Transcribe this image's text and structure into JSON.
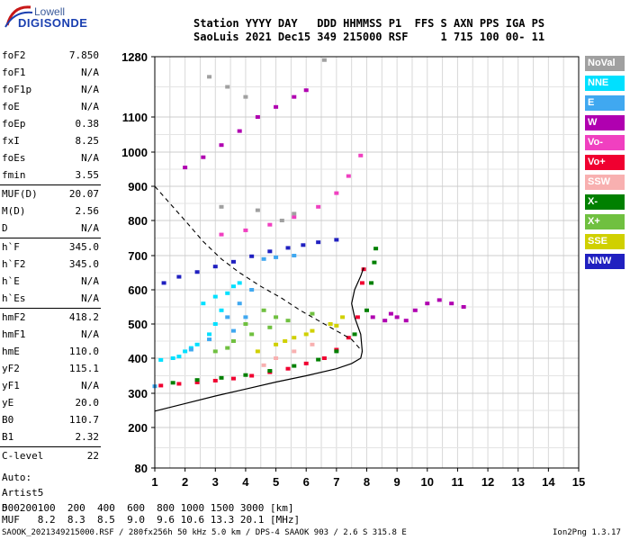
{
  "logo": {
    "line1": "Lowell",
    "line2": "DIGISONDE"
  },
  "header": {
    "row1": "Station YYYY DAY   DDD HHMMSS P1  FFS S AXN PPS IGA PS",
    "row2": "SaoLuis 2021 Dec15 349 215000 RSF     1 715 100 00- 11"
  },
  "params": [
    {
      "label": "foF2",
      "value": "7.850"
    },
    {
      "label": "foF1",
      "value": "N/A"
    },
    {
      "label": "foF1p",
      "value": "N/A"
    },
    {
      "label": "foE",
      "value": "N/A"
    },
    {
      "label": "foEp",
      "value": "0.38"
    },
    {
      "label": "fxI",
      "value": "8.25"
    },
    {
      "label": "foEs",
      "value": "N/A"
    },
    {
      "label": "fmin",
      "value": "3.55"
    },
    {
      "label": "MUF(D)",
      "value": "20.07"
    },
    {
      "label": "M(D)",
      "value": "2.56"
    },
    {
      "label": "D",
      "value": "N/A"
    },
    {
      "label": "h`F",
      "value": "345.0"
    },
    {
      "label": "h`F2",
      "value": "345.0"
    },
    {
      "label": "h`E",
      "value": "N/A"
    },
    {
      "label": "h`Es",
      "value": "N/A"
    },
    {
      "label": "hmF2",
      "value": "418.2"
    },
    {
      "label": "hmF1",
      "value": "N/A"
    },
    {
      "label": "hmE",
      "value": "110.0"
    },
    {
      "label": "yF2",
      "value": "115.1"
    },
    {
      "label": "yF1",
      "value": "N/A"
    },
    {
      "label": "yE",
      "value": "20.0"
    },
    {
      "label": "B0",
      "value": "110.7"
    },
    {
      "label": "B1",
      "value": "2.32"
    },
    {
      "label": "C-level",
      "value": "22"
    }
  ],
  "auto": {
    "line1": "Auto:",
    "line2": "Artist5",
    "line3": "500200"
  },
  "legend": [
    {
      "label": "NoVal",
      "color": "#a0a0a0"
    },
    {
      "label": "NNE",
      "color": "#00e0ff"
    },
    {
      "label": "E",
      "color": "#40a8f0"
    },
    {
      "label": "W",
      "color": "#b000b0"
    },
    {
      "label": "Vo-",
      "color": "#f040c0"
    },
    {
      "label": "Vo+",
      "color": "#f00030"
    },
    {
      "label": "SSW",
      "color": "#f8b0b0"
    },
    {
      "label": "X-",
      "color": "#008000"
    },
    {
      "label": "X+",
      "color": "#70c040"
    },
    {
      "label": "SSE",
      "color": "#d0d000"
    },
    {
      "label": "NNW",
      "color": "#2020c0"
    }
  ],
  "footer": {
    "d_row": "D     100  200  400  600  800 1000 1500 3000 [km]",
    "muf_row": "MUF   8.2  8.3  8.5  9.0  9.6 10.6 13.3 20.1 [MHz]",
    "info": "SAOOK_2021349215000.RSF / 280fx256h 50 kHz 5.0 km / DPS-4 SAAOK 903 / 2.6 S 315.8 E",
    "version": "Ion2Png 1.3.17"
  },
  "chart_data": {
    "type": "scatter",
    "x_ticks": [
      1,
      2,
      3,
      4,
      5,
      6,
      7,
      8,
      9,
      10,
      11,
      12,
      13,
      14,
      15
    ],
    "y_ticks": [
      80,
      200,
      300,
      400,
      500,
      600,
      700,
      800,
      900,
      1000,
      1100,
      1280
    ],
    "xlim": [
      1,
      15
    ],
    "ylim": [
      80,
      1280
    ],
    "grid": true,
    "legend_position": "right",
    "series": [
      {
        "name": "W",
        "color": "#b000b0",
        "points": [
          [
            2.0,
            955
          ],
          [
            2.6,
            985
          ],
          [
            3.2,
            1020
          ],
          [
            3.8,
            1060
          ],
          [
            4.4,
            1100
          ],
          [
            5.0,
            1130
          ],
          [
            5.6,
            1160
          ],
          [
            6.0,
            1180
          ]
        ]
      },
      {
        "name": "NNW",
        "color": "#2020c0",
        "points": [
          [
            1.3,
            620
          ],
          [
            1.8,
            638
          ],
          [
            2.4,
            652
          ],
          [
            3.0,
            668
          ],
          [
            3.6,
            682
          ],
          [
            4.2,
            698
          ],
          [
            4.8,
            712
          ],
          [
            5.4,
            722
          ],
          [
            5.9,
            730
          ],
          [
            6.4,
            738
          ],
          [
            7.0,
            745
          ]
        ]
      },
      {
        "name": "Vo+",
        "color": "#f00030",
        "points": [
          [
            1.2,
            322
          ],
          [
            1.8,
            327
          ],
          [
            2.4,
            331
          ],
          [
            3.0,
            336
          ],
          [
            3.6,
            342
          ],
          [
            4.2,
            350
          ],
          [
            4.8,
            360
          ],
          [
            5.4,
            370
          ],
          [
            6.0,
            385
          ],
          [
            6.6,
            400
          ],
          [
            7.0,
            425
          ],
          [
            7.4,
            460
          ],
          [
            7.7,
            520
          ],
          [
            7.85,
            620
          ],
          [
            7.9,
            660
          ]
        ]
      },
      {
        "name": "X-",
        "color": "#008000",
        "points": [
          [
            1.6,
            330
          ],
          [
            2.4,
            338
          ],
          [
            3.2,
            344
          ],
          [
            4.0,
            352
          ],
          [
            4.8,
            364
          ],
          [
            5.6,
            378
          ],
          [
            6.4,
            396
          ],
          [
            7.0,
            420
          ],
          [
            7.6,
            470
          ],
          [
            8.0,
            540
          ],
          [
            8.15,
            620
          ],
          [
            8.25,
            680
          ],
          [
            8.3,
            720
          ]
        ]
      },
      {
        "name": "Vo-",
        "color": "#f040c0",
        "points": [
          [
            3.2,
            760
          ],
          [
            4.0,
            772
          ],
          [
            4.8,
            788
          ],
          [
            5.6,
            810
          ],
          [
            6.4,
            840
          ],
          [
            7.0,
            880
          ],
          [
            7.4,
            930
          ],
          [
            7.8,
            990
          ]
        ]
      },
      {
        "name": "NNE",
        "color": "#00e0ff",
        "points": [
          [
            1.2,
            395
          ],
          [
            1.6,
            400
          ],
          [
            2.0,
            420
          ],
          [
            2.4,
            440
          ],
          [
            2.8,
            470
          ],
          [
            3.0,
            500
          ],
          [
            3.2,
            540
          ],
          [
            3.4,
            590
          ],
          [
            3.6,
            610
          ],
          [
            2.6,
            560
          ],
          [
            3.0,
            580
          ],
          [
            3.8,
            620
          ],
          [
            1.8,
            405
          ],
          [
            2.2,
            430
          ]
        ]
      },
      {
        "name": "E",
        "color": "#40a8f0",
        "points": [
          [
            1.0,
            320
          ],
          [
            2.2,
            425
          ],
          [
            2.8,
            455
          ],
          [
            3.4,
            520
          ],
          [
            3.8,
            560
          ],
          [
            4.2,
            600
          ],
          [
            4.6,
            690
          ],
          [
            5.0,
            695
          ],
          [
            5.6,
            700
          ],
          [
            4.0,
            520
          ],
          [
            3.6,
            480
          ]
        ]
      },
      {
        "name": "SSE",
        "color": "#d0d000",
        "points": [
          [
            4.4,
            420
          ],
          [
            5.0,
            440
          ],
          [
            5.6,
            460
          ],
          [
            6.2,
            480
          ],
          [
            6.8,
            500
          ],
          [
            7.2,
            520
          ],
          [
            6.0,
            470
          ],
          [
            5.3,
            450
          ],
          [
            7.0,
            495
          ]
        ]
      },
      {
        "name": "X+",
        "color": "#70c040",
        "points": [
          [
            3.0,
            420
          ],
          [
            3.6,
            450
          ],
          [
            4.2,
            470
          ],
          [
            4.8,
            490
          ],
          [
            5.4,
            510
          ],
          [
            6.2,
            530
          ],
          [
            4.0,
            500
          ],
          [
            5.0,
            520
          ],
          [
            3.4,
            430
          ],
          [
            4.6,
            540
          ]
        ]
      },
      {
        "name": "W",
        "color": "#b000b0",
        "points": [
          [
            8.2,
            520
          ],
          [
            8.6,
            510
          ],
          [
            9.0,
            520
          ],
          [
            9.6,
            540
          ],
          [
            10.0,
            560
          ],
          [
            10.4,
            570
          ],
          [
            10.8,
            560
          ],
          [
            11.2,
            550
          ],
          [
            8.8,
            530
          ],
          [
            9.3,
            510
          ]
        ]
      },
      {
        "name": "SSW",
        "color": "#f8b0b0",
        "points": [
          [
            5.0,
            400
          ],
          [
            5.6,
            420
          ],
          [
            6.2,
            440
          ],
          [
            4.6,
            380
          ]
        ]
      },
      {
        "name": "NoVal",
        "color": "#a0a0a0",
        "points": [
          [
            2.8,
            1220
          ],
          [
            3.4,
            1190
          ],
          [
            4.0,
            1160
          ],
          [
            6.6,
            1270
          ],
          [
            5.2,
            800
          ],
          [
            5.6,
            820
          ],
          [
            4.4,
            830
          ],
          [
            3.2,
            840
          ]
        ]
      }
    ],
    "trace_curve": [
      [
        1.0,
        248
      ],
      [
        2.0,
        270
      ],
      [
        3.0,
        292
      ],
      [
        4.0,
        312
      ],
      [
        5.0,
        332
      ],
      [
        6.0,
        350
      ],
      [
        7.0,
        370
      ],
      [
        7.5,
        385
      ],
      [
        7.8,
        400
      ],
      [
        7.85,
        420
      ],
      [
        7.8,
        470
      ],
      [
        7.6,
        520
      ],
      [
        7.5,
        560
      ],
      [
        7.6,
        600
      ],
      [
        7.8,
        640
      ],
      [
        7.9,
        665
      ]
    ],
    "dashed_curve": [
      [
        1.0,
        900
      ],
      [
        1.5,
        850
      ],
      [
        2.0,
        800
      ],
      [
        2.6,
        740
      ],
      [
        3.2,
        690
      ],
      [
        3.8,
        650
      ],
      [
        4.5,
        610
      ],
      [
        5.2,
        575
      ],
      [
        5.8,
        540
      ],
      [
        6.4,
        510
      ],
      [
        7.0,
        480
      ],
      [
        7.5,
        455
      ],
      [
        7.85,
        420
      ]
    ]
  }
}
